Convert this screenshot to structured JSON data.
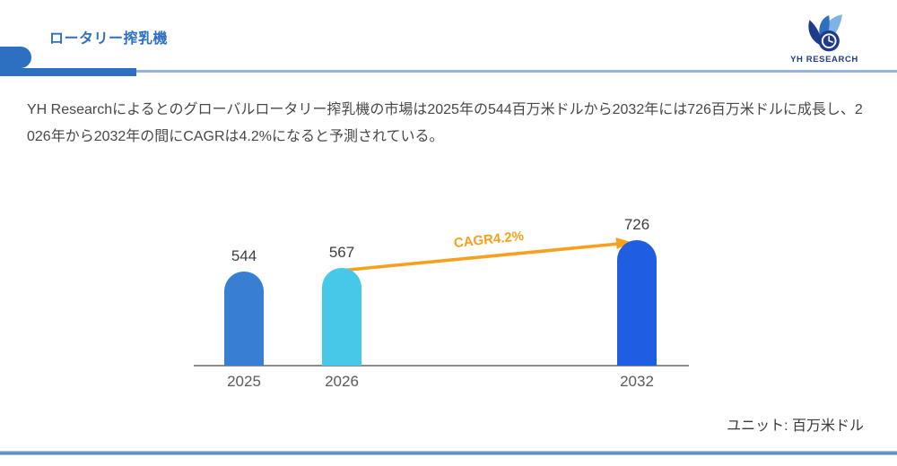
{
  "header": {
    "title": "ロータリー搾乳機",
    "logo_text": "YH RESEARCH"
  },
  "description": "YH Researchによるとのグローバルロータリー搾乳機の市場は2025年の544百万米ドルから2032年には726百万米ドルに成長し、2026年から2032年の間にCAGRは4.2%になると予測されている。",
  "chart_data": {
    "type": "bar",
    "categories": [
      "2025",
      "2026",
      "2032"
    ],
    "values": [
      544,
      567,
      726
    ],
    "bar_colors": [
      "#387fd3",
      "#46c8e8",
      "#1f5ee0"
    ],
    "value_labels": [
      "544",
      "567",
      "726"
    ],
    "annotation": "CAGR4.2%",
    "annotation_color": "#f6a01e",
    "title": "",
    "xlabel": "",
    "ylabel": "",
    "ylim": [
      0,
      780
    ],
    "grid": false,
    "legend": false,
    "axis_color": "#8c8c8c"
  },
  "footer": {
    "unit_label": "ユニット: 百万米ドル"
  },
  "colors": {
    "accent_blue": "#2d6fc1",
    "light_blue_line": "#92b6dd",
    "logo_navy": "#1f3c8c",
    "text_gray": "#474747",
    "orange": "#f6a01e"
  }
}
